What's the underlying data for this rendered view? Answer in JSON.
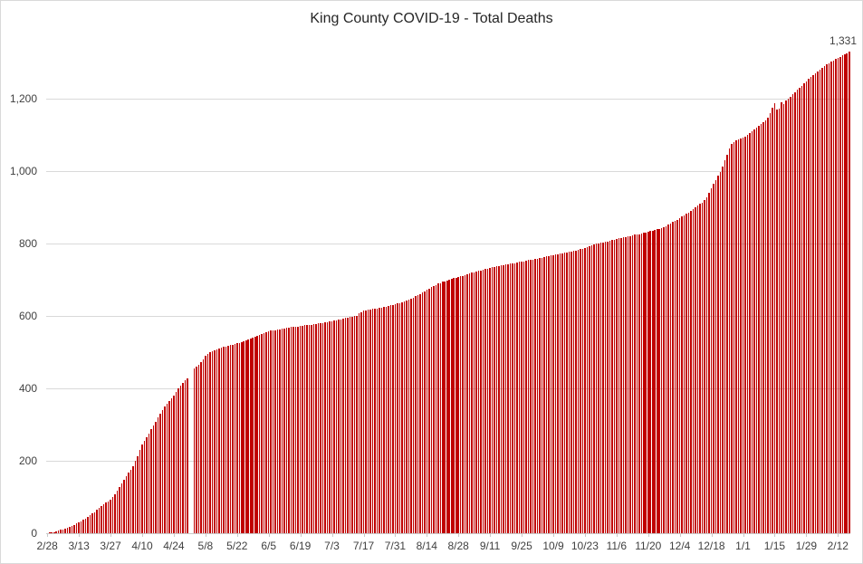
{
  "chart_data": {
    "type": "bar",
    "title": "King County COVID-19 - Total Deaths",
    "series_name": "Total Deaths",
    "bar_color": "#c00000",
    "gridline_color": "#d9d9d9",
    "axis_color": "#c8c8c8",
    "label_color": "#404040",
    "final_value": 1331,
    "final_value_label": "1,331",
    "legend": "none",
    "grid": "horizontal",
    "xlabel": "",
    "ylabel": "",
    "ylim": [
      0,
      1350
    ],
    "y_ticks": [
      0,
      200,
      400,
      600,
      800,
      1000,
      1200
    ],
    "y_tick_labels": [
      "0",
      "200",
      "400",
      "600",
      "800",
      "1,000",
      "1,200"
    ],
    "x_tick_labels": [
      "2/28",
      "3/13",
      "3/27",
      "4/10",
      "4/24",
      "5/8",
      "5/22",
      "6/5",
      "6/19",
      "7/3",
      "7/17",
      "7/31",
      "8/14",
      "8/28",
      "9/11",
      "9/25",
      "10/9",
      "10/23",
      "11/6",
      "11/20",
      "12/4",
      "12/18",
      "1/1",
      "1/15",
      "1/29",
      "2/12"
    ],
    "x_tick_interval_days": 14,
    "x_start_label": "2/28",
    "days_with_no_bar": [
      63,
      64
    ],
    "values": [
      1,
      2,
      2,
      3,
      5,
      7,
      9,
      11,
      13,
      15,
      17,
      20,
      23,
      27,
      30,
      33,
      37,
      40,
      45,
      49,
      54,
      58,
      64,
      69,
      75,
      79,
      84,
      88,
      92,
      100,
      108,
      118,
      128,
      138,
      148,
      158,
      167,
      176,
      185,
      199,
      212,
      229,
      245,
      255,
      265,
      276,
      287,
      298,
      308,
      319,
      330,
      340,
      350,
      358,
      366,
      373,
      380,
      390,
      400,
      408,
      415,
      422,
      428,
      null,
      null,
      455,
      460,
      466,
      472,
      481,
      490,
      495,
      500,
      503,
      506,
      508,
      510,
      512,
      514,
      516,
      517,
      519,
      521,
      522,
      524,
      526,
      528,
      530,
      532,
      535,
      537,
      540,
      542,
      545,
      547,
      550,
      553,
      556,
      558,
      559,
      560,
      561,
      562,
      563,
      564,
      566,
      567,
      568,
      569,
      570,
      570,
      571,
      572,
      573,
      574,
      574,
      575,
      576,
      577,
      578,
      579,
      580,
      581,
      582,
      583,
      584,
      585,
      587,
      588,
      590,
      591,
      593,
      594,
      595,
      597,
      598,
      599,
      600,
      607,
      611,
      614,
      615,
      617,
      618,
      619,
      620,
      621,
      622,
      623,
      625,
      626,
      628,
      629,
      631,
      632,
      634,
      636,
      638,
      640,
      642,
      644,
      647,
      650,
      654,
      658,
      661,
      665,
      668,
      672,
      676,
      680,
      683,
      686,
      689,
      691,
      694,
      696,
      698,
      700,
      702,
      704,
      705,
      707,
      709,
      711,
      713,
      715,
      717,
      719,
      720,
      722,
      724,
      726,
      728,
      730,
      731,
      733,
      734,
      736,
      737,
      738,
      739,
      740,
      742,
      743,
      744,
      745,
      746,
      748,
      749,
      750,
      751,
      752,
      754,
      755,
      756,
      757,
      758,
      760,
      761,
      762,
      764,
      765,
      767,
      768,
      769,
      771,
      772,
      773,
      774,
      776,
      777,
      778,
      780,
      781,
      783,
      784,
      786,
      788,
      791,
      793,
      795,
      797,
      799,
      800,
      802,
      803,
      805,
      806,
      808,
      809,
      811,
      812,
      814,
      815,
      817,
      818,
      820,
      821,
      823,
      824,
      825,
      826,
      828,
      829,
      831,
      832,
      834,
      835,
      837,
      839,
      841,
      843,
      846,
      848,
      852,
      855,
      859,
      862,
      866,
      870,
      874,
      878,
      882,
      886,
      891,
      895,
      900,
      905,
      909,
      913,
      921,
      928,
      940,
      952,
      964,
      975,
      987,
      998,
      1012,
      1030,
      1046,
      1062,
      1076,
      1080,
      1084,
      1087,
      1089,
      1092,
      1096,
      1100,
      1105,
      1111,
      1116,
      1121,
      1126,
      1131,
      1135,
      1140,
      1148,
      1160,
      1174,
      1188,
      1170,
      1173,
      1190,
      1185,
      1194,
      1200,
      1206,
      1212,
      1218,
      1224,
      1230,
      1236,
      1242,
      1248,
      1254,
      1259,
      1264,
      1269,
      1274,
      1279,
      1284,
      1289,
      1294,
      1298,
      1302,
      1306,
      1310,
      1313,
      1316,
      1320,
      1323,
      1326,
      1331
    ]
  }
}
